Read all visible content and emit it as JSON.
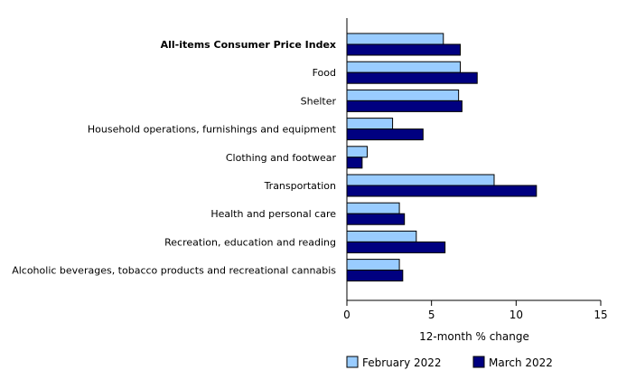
{
  "chart_data": {
    "type": "bar",
    "orientation": "horizontal",
    "categories": [
      "All-items Consumer Price Index",
      "Food",
      "Shelter",
      "Household operations, furnishings and equipment",
      "Clothing and footwear",
      "Transportation",
      "Health and personal care",
      "Recreation, education and reading",
      "Alcoholic beverages, tobacco products and recreational cannabis"
    ],
    "bold_categories": [
      "All-items Consumer Price Index"
    ],
    "series": [
      {
        "name": "February 2022",
        "color": "#99ccff",
        "values": [
          5.7,
          6.7,
          6.6,
          2.7,
          1.2,
          8.7,
          3.1,
          4.1,
          3.1
        ]
      },
      {
        "name": "March 2022",
        "color": "#000080",
        "values": [
          6.7,
          7.7,
          6.8,
          4.5,
          0.9,
          11.2,
          3.4,
          5.8,
          3.3
        ]
      }
    ],
    "xlabel": "12-month % change",
    "ylabel": "",
    "xlim": [
      0,
      15
    ],
    "xticks": [
      0,
      5,
      10,
      15
    ],
    "grid": false,
    "legend_position": "bottom"
  }
}
